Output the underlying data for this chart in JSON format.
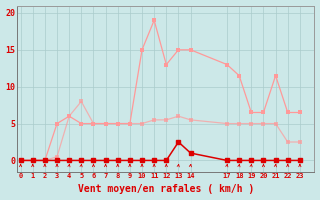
{
  "background_color": "#cce8e8",
  "grid_color": "#aacccc",
  "color_dark_red": "#dd0000",
  "color_light_pink": "#ff9999",
  "color_medium_pink": "#ff6666",
  "xlabel": "Vent moyen/en rafales ( km/h )",
  "xlabel_color": "#dd0000",
  "xlabel_fontsize": 7,
  "yticks": [
    0,
    5,
    10,
    15,
    20
  ],
  "xticks": [
    0,
    1,
    2,
    3,
    4,
    5,
    6,
    7,
    8,
    9,
    10,
    11,
    12,
    13,
    14,
    17,
    18,
    19,
    20,
    21,
    22,
    23
  ],
  "xlim": [
    -0.3,
    24.2
  ],
  "ylim": [
    -1.5,
    21
  ],
  "rafales_x": [
    0,
    1,
    2,
    3,
    4,
    5,
    6,
    7,
    8,
    9,
    10,
    11,
    12,
    13,
    14,
    17,
    18,
    19,
    20,
    21,
    22,
    23
  ],
  "rafales_y": [
    0,
    0,
    0,
    5,
    6,
    5,
    5,
    5,
    5,
    5,
    15,
    19,
    13,
    15,
    15,
    13,
    11.5,
    6.5,
    6.5,
    11.5,
    6.5,
    6.5
  ],
  "moyen_x": [
    0,
    1,
    2,
    3,
    4,
    5,
    6,
    7,
    8,
    9,
    10,
    11,
    12,
    13,
    14,
    17,
    18,
    19,
    20,
    21,
    22,
    23
  ],
  "moyen_y": [
    0,
    0,
    0,
    0.5,
    6,
    8,
    5,
    5,
    5,
    5,
    5,
    5.5,
    5.5,
    6,
    5.5,
    5,
    5,
    5,
    5,
    5,
    2.5,
    2.5
  ],
  "dark_x": [
    0,
    1,
    2,
    3,
    4,
    5,
    6,
    7,
    8,
    9,
    10,
    11,
    12,
    13,
    14,
    17,
    18,
    19,
    20,
    21,
    22,
    23
  ],
  "dark_y": [
    0,
    0,
    0,
    0,
    0,
    0,
    0,
    0,
    0,
    0,
    0,
    0,
    0,
    2.5,
    1,
    0,
    0,
    0,
    0,
    0,
    0,
    0
  ],
  "arrow_angles_deg": [
    90,
    90,
    90,
    90,
    135,
    135,
    90,
    90,
    90,
    90,
    90,
    90,
    90,
    135,
    135,
    135,
    135,
    135,
    90,
    135,
    90,
    90
  ]
}
